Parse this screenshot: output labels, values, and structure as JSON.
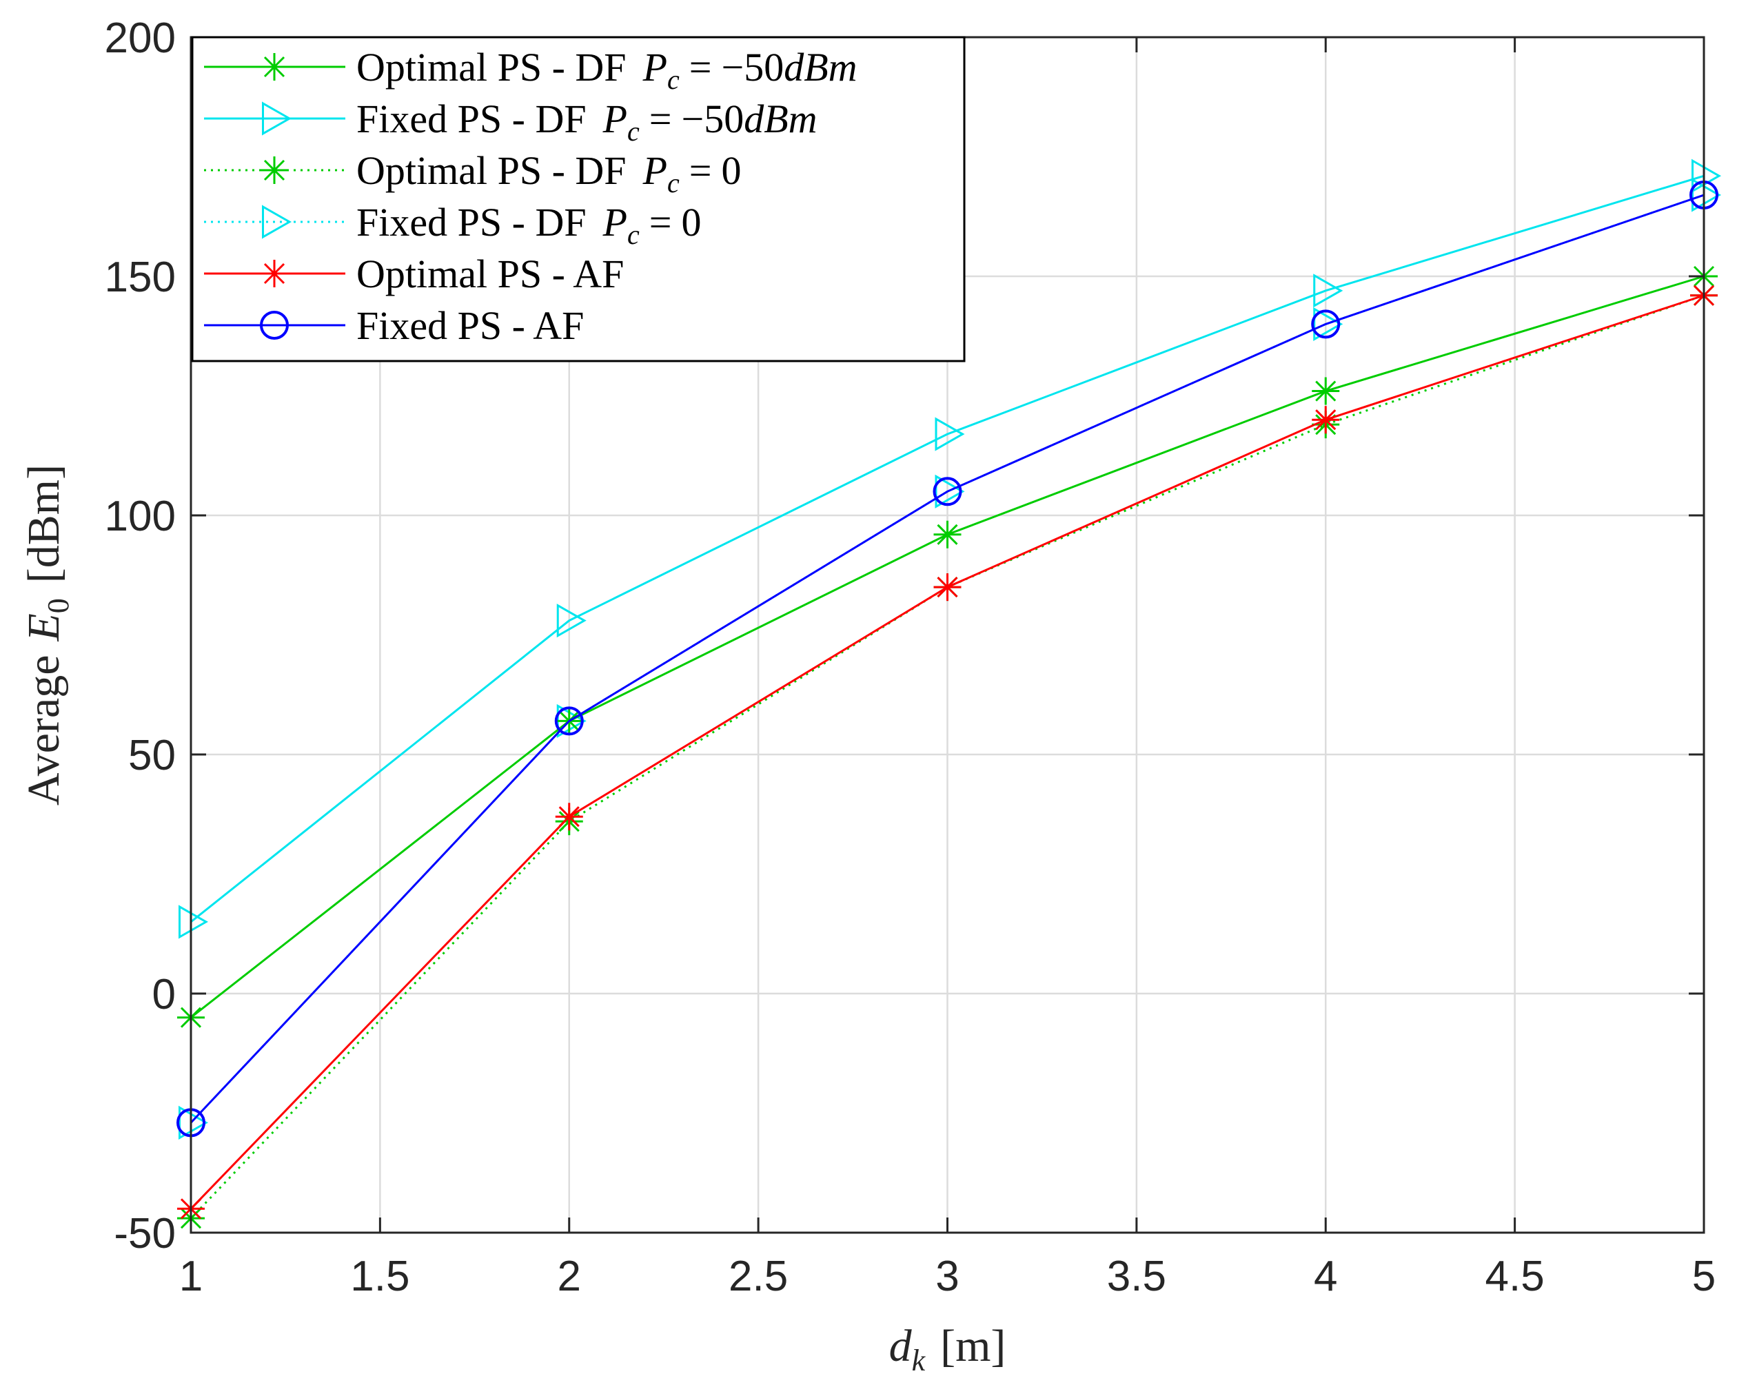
{
  "chart_data": {
    "type": "line",
    "title": "",
    "xlabel": "d_k [m]",
    "xlabel_main": "d",
    "xlabel_sub": "k",
    "xlabel_unit": "[m]",
    "ylabel": "Average E_0 [dBm]",
    "ylabel_prefix": "Average",
    "ylabel_var": "E",
    "ylabel_sub": "0",
    "ylabel_unit": "[dBm]",
    "xlim": [
      1,
      5
    ],
    "ylim": [
      -50,
      200
    ],
    "grid": true,
    "legend_position": "top-left",
    "x_ticks": [
      1,
      1.5,
      2,
      2.5,
      3,
      3.5,
      4,
      4.5,
      5
    ],
    "x_tick_labels": [
      "1",
      "1.5",
      "2",
      "2.5",
      "3",
      "3.5",
      "4",
      "4.5",
      "5"
    ],
    "y_ticks": [
      -50,
      0,
      50,
      100,
      150,
      200
    ],
    "y_tick_labels": [
      "-50",
      "0",
      "50",
      "100",
      "150",
      "200"
    ],
    "x": [
      1,
      2,
      3,
      4,
      5
    ],
    "series": [
      {
        "name": "Optimal PS - DF P_c = -50dBm",
        "legend_label": "Optimal PS - DF",
        "legend_math": "P_c = -50dBm",
        "color": "#00cc00",
        "marker": "asterisk",
        "linestyle": "solid",
        "values": [
          -5,
          57,
          96,
          126,
          150
        ]
      },
      {
        "name": "Fixed PS - DF P_c = -50dBm",
        "legend_label": "Fixed PS - DF",
        "legend_math": "P_c = -50dBm",
        "color": "#00e5ee",
        "marker": "triangle-right",
        "linestyle": "solid",
        "values": [
          15,
          78,
          117,
          147,
          171
        ]
      },
      {
        "name": "Optimal PS - DF P_c = 0",
        "legend_label": "Optimal PS - DF",
        "legend_math": "P_c = 0",
        "color": "#00cc00",
        "marker": "asterisk",
        "linestyle": "dotted",
        "values": [
          -47,
          36,
          85,
          119,
          146
        ]
      },
      {
        "name": "Fixed PS - DF P_c = 0",
        "legend_label": "Fixed PS - DF",
        "legend_math": "P_c = 0",
        "color": "#00e5ee",
        "marker": "triangle-right",
        "linestyle": "dotted",
        "values": [
          -27,
          57,
          105,
          140,
          167
        ]
      },
      {
        "name": "Optimal PS - AF",
        "legend_label": "Optimal PS - AF",
        "legend_math": "",
        "color": "#ff0000",
        "marker": "asterisk",
        "linestyle": "solid",
        "values": [
          -45,
          37,
          85,
          120,
          146
        ]
      },
      {
        "name": "Fixed PS - AF",
        "legend_label": "Fixed PS - AF",
        "legend_math": "",
        "color": "#0000ff",
        "marker": "circle",
        "linestyle": "solid",
        "values": [
          -27,
          57,
          105,
          140,
          167
        ]
      }
    ]
  }
}
